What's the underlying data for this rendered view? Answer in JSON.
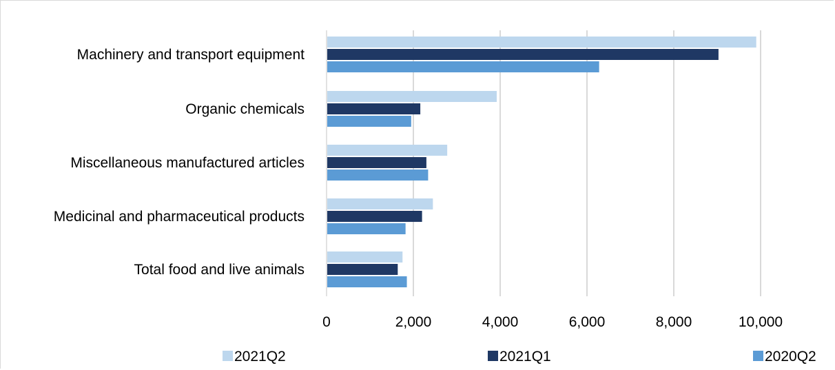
{
  "chart_data": {
    "type": "bar",
    "orientation": "horizontal",
    "categories": [
      "Machinery and transport equipment",
      "Organic chemicals",
      "Miscellaneous manufactured articles",
      "Medicinal and pharmaceutical products",
      "Total food and live animals"
    ],
    "series": [
      {
        "name": "2021Q2",
        "color": "#bdd7ee",
        "values": [
          9900,
          3920,
          2780,
          2450,
          1750
        ]
      },
      {
        "name": "2021Q1",
        "color": "#1f3864",
        "values": [
          9030,
          2160,
          2300,
          2200,
          1640
        ]
      },
      {
        "name": "2020Q2",
        "color": "#5b9bd5",
        "values": [
          6280,
          1950,
          2340,
          1820,
          1850
        ]
      }
    ],
    "xlim": [
      0,
      10000
    ],
    "xticks": [
      0,
      2000,
      4000,
      6000,
      8000,
      10000
    ],
    "xtick_labels": [
      "0",
      "2,000",
      "4,000",
      "6,000",
      "8,000",
      "10,000"
    ],
    "title": "",
    "xlabel": "",
    "ylabel": "",
    "grid": "vertical",
    "legend_position": "bottom"
  }
}
